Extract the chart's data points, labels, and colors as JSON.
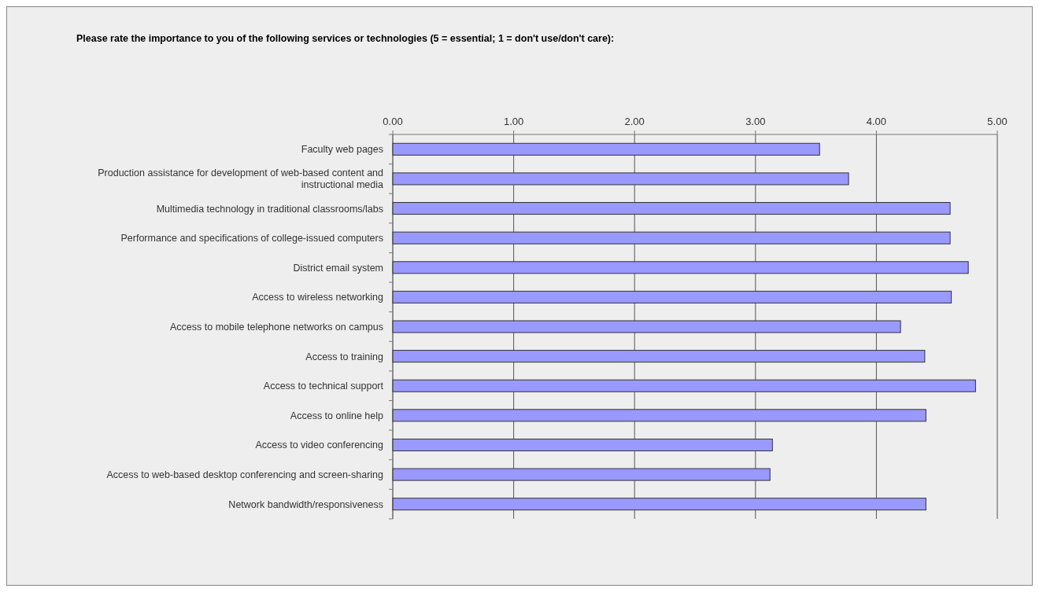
{
  "chart_data": {
    "type": "bar",
    "orientation": "horizontal",
    "title": "Please rate the importance to you of the following services or technologies (5 = essential; 1 = don't use/don't care):",
    "categories": [
      "Faculty web pages",
      "Production assistance for development of web-based content and instructional media",
      "Multimedia technology in traditional classrooms/labs",
      "Performance and specifications of college-issued computers",
      "District email system",
      "Access to wireless networking",
      "Access to mobile telephone networks on campus",
      "Access to training",
      "Access to technical support",
      "Access to online help",
      "Access to video conferencing",
      "Access to web-based desktop conferencing and screen-sharing",
      "Network bandwidth/responsiveness"
    ],
    "values": [
      3.53,
      3.77,
      4.61,
      4.61,
      4.76,
      4.62,
      4.2,
      4.4,
      4.82,
      4.41,
      3.14,
      3.12,
      4.41
    ],
    "color": "#9999ff",
    "xlim": [
      0,
      5
    ],
    "xticks": [
      {
        "value": 0,
        "label": "0.00"
      },
      {
        "value": 1,
        "label": "1.00"
      },
      {
        "value": 2,
        "label": "2.00"
      },
      {
        "value": 3,
        "label": "3.00"
      },
      {
        "value": 4,
        "label": "4.00"
      },
      {
        "value": 5,
        "label": "5.00"
      }
    ],
    "grid": "x"
  }
}
